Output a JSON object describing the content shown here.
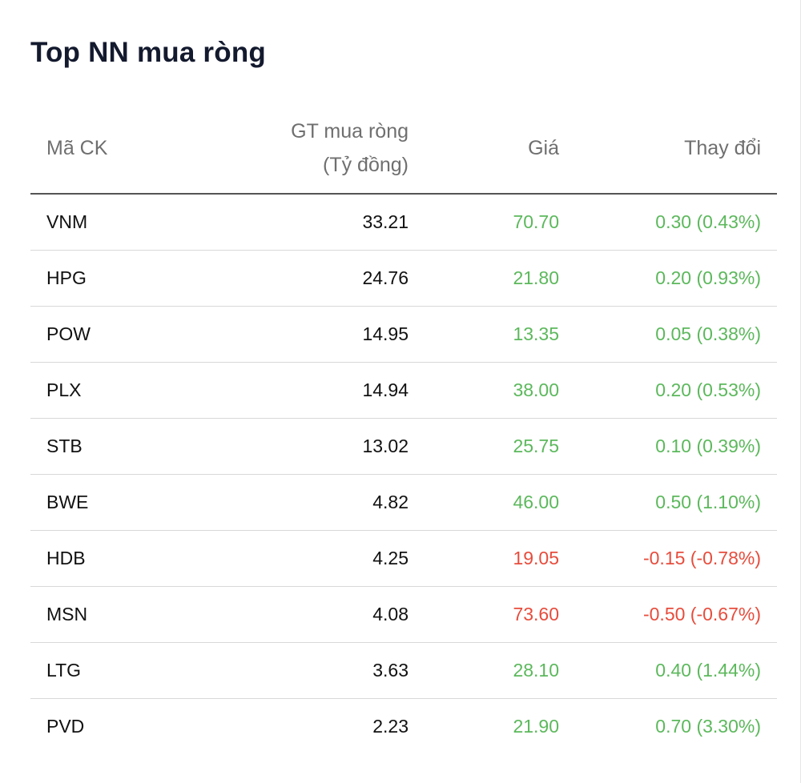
{
  "title": "Top NN mua ròng",
  "table": {
    "headers": {
      "symbol": "Mã CK",
      "value_line1": "GT mua ròng",
      "value_line2": "(Tỷ đồng)",
      "price": "Giá",
      "change": "Thay đổi"
    },
    "rows": [
      {
        "symbol": "VNM",
        "value": "33.21",
        "price": "70.70",
        "change": "0.30 (0.43%)",
        "direction": "up"
      },
      {
        "symbol": "HPG",
        "value": "24.76",
        "price": "21.80",
        "change": "0.20 (0.93%)",
        "direction": "up"
      },
      {
        "symbol": "POW",
        "value": "14.95",
        "price": "13.35",
        "change": "0.05 (0.38%)",
        "direction": "up"
      },
      {
        "symbol": "PLX",
        "value": "14.94",
        "price": "38.00",
        "change": "0.20 (0.53%)",
        "direction": "up"
      },
      {
        "symbol": "STB",
        "value": "13.02",
        "price": "25.75",
        "change": "0.10 (0.39%)",
        "direction": "up"
      },
      {
        "symbol": "BWE",
        "value": "4.82",
        "price": "46.00",
        "change": "0.50 (1.10%)",
        "direction": "up"
      },
      {
        "symbol": "HDB",
        "value": "4.25",
        "price": "19.05",
        "change": "-0.15 (-0.78%)",
        "direction": "down"
      },
      {
        "symbol": "MSN",
        "value": "4.08",
        "price": "73.60",
        "change": "-0.50 (-0.67%)",
        "direction": "down"
      },
      {
        "symbol": "LTG",
        "value": "3.63",
        "price": "28.10",
        "change": "0.40 (1.44%)",
        "direction": "up"
      },
      {
        "symbol": "PVD",
        "value": "2.23",
        "price": "21.90",
        "change": "0.70 (3.30%)",
        "direction": "up"
      }
    ]
  },
  "colors": {
    "up": "#5cb85c",
    "down": "#e74c3c",
    "title": "#141a2e",
    "header_text": "#6f6f6f"
  }
}
